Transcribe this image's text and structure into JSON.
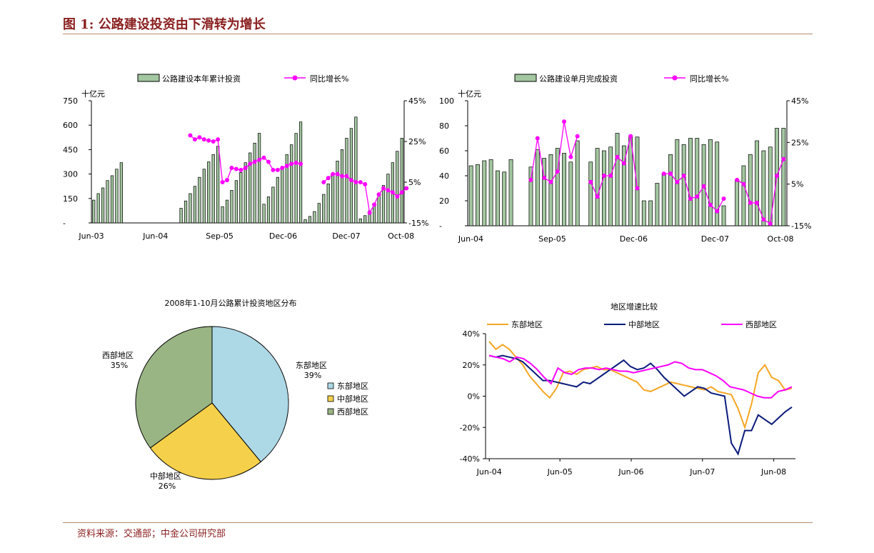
{
  "figure": {
    "title": "图 1:  公路建设投资由下滑转为增长",
    "source": "资料来源：交通部；中金公司研究部"
  },
  "colors": {
    "title": "#8a1f1f",
    "bar": "#a3c7a0",
    "line": "#ff00ff",
    "east": "#f5a623",
    "central": "#0a1a7a",
    "west": "#ff00ff",
    "pie_east": "#add8e6",
    "pie_central": "#f5d04a",
    "pie_west": "#99b584"
  },
  "chart_data": [
    {
      "id": "cumulative",
      "type": "bar",
      "legend": [
        "公路建设本年累计投资",
        "同比增长%"
      ],
      "y_unit": "十亿元",
      "y_ticks": [
        "-",
        "150",
        "300",
        "450",
        "600",
        "750"
      ],
      "y2_ticks": [
        "-15%",
        "5%",
        "25%",
        "45%"
      ],
      "x_ticks": [
        "Jun-03",
        "Jun-04",
        "Sep-05",
        "Dec-06",
        "Dec-07",
        "Oct-08"
      ],
      "ylim": [
        0,
        750
      ],
      "y2lim": [
        -15,
        45
      ],
      "series": [
        {
          "name": "公路建设本年累计投资",
          "kind": "bar",
          "values": [
            140,
            180,
            215,
            260,
            290,
            330,
            370,
            null,
            null,
            null,
            null,
            null,
            null,
            null,
            null,
            null,
            null,
            null,
            null,
            90,
            135,
            180,
            225,
            280,
            330,
            375,
            420,
            470,
            100,
            140,
            200,
            260,
            310,
            370,
            430,
            490,
            550,
            115,
            160,
            220,
            280,
            340,
            420,
            480,
            550,
            620,
            20,
            40,
            70,
            120,
            175,
            240,
            300,
            380,
            450,
            520,
            580,
            650,
            25,
            45,
            75,
            120,
            170,
            230,
            300,
            370,
            440,
            520
          ]
        },
        {
          "name": "同比增长%",
          "kind": "line",
          "values": [
            null,
            null,
            null,
            null,
            null,
            null,
            null,
            null,
            null,
            null,
            null,
            null,
            null,
            null,
            null,
            null,
            null,
            null,
            null,
            null,
            null,
            28,
            26,
            27,
            26,
            25.5,
            25,
            26,
            5,
            6,
            12,
            11.5,
            11,
            12,
            14,
            15,
            16,
            17,
            15,
            11,
            11,
            12,
            13,
            14,
            14.5,
            14,
            null,
            null,
            null,
            null,
            5,
            7,
            9,
            9,
            8,
            8,
            6,
            5,
            5,
            4,
            -10,
            -6,
            -1,
            2,
            1,
            0,
            -2,
            0,
            2
          ]
        }
      ]
    },
    {
      "id": "monthly",
      "type": "bar",
      "legend": [
        "公路建设单月完成投资",
        "同比增长%"
      ],
      "y_unit": "十亿元",
      "y_ticks": [
        "-",
        "20",
        "40",
        "60",
        "80",
        "100"
      ],
      "y2_ticks": [
        "-15%",
        "5%",
        "25%",
        "45%"
      ],
      "x_ticks": [
        "Jun-04",
        "Sep-05",
        "Dec-06",
        "Dec-07",
        "Oct-08"
      ],
      "ylim": [
        0,
        100
      ],
      "y2lim": [
        -15,
        45
      ],
      "series": [
        {
          "name": "公路建设单月完成投资",
          "kind": "bar",
          "values": [
            48,
            49,
            52,
            53,
            44,
            43,
            53,
            null,
            null,
            47,
            61,
            54,
            57,
            62,
            58,
            51,
            68,
            null,
            51,
            62,
            60,
            63,
            74,
            64,
            72,
            71,
            20,
            20,
            34,
            42,
            57,
            69,
            65,
            70,
            70,
            65,
            69,
            67,
            16,
            null,
            37,
            48,
            57,
            68,
            60,
            63,
            78,
            78
          ]
        },
        {
          "name": "同比增长%",
          "kind": "line",
          "values": [
            null,
            null,
            null,
            null,
            null,
            null,
            null,
            null,
            null,
            7,
            27,
            8,
            6,
            11,
            35,
            18,
            28,
            null,
            6,
            -1,
            9,
            9,
            18,
            15,
            28,
            3,
            null,
            null,
            null,
            10,
            10,
            6,
            9,
            -2,
            -1,
            4,
            -5,
            -8,
            -2,
            null,
            7,
            5,
            -4,
            -4,
            -12,
            -14,
            9,
            17
          ]
        }
      ]
    },
    {
      "id": "pie",
      "type": "pie",
      "title": "2008年1-10月公路累计投资地区分布",
      "categories": [
        "东部地区",
        "中部地区",
        "西部地区"
      ],
      "values": [
        39,
        26,
        35
      ],
      "labels": [
        "39%",
        "26%",
        "35%"
      ]
    },
    {
      "id": "regional",
      "type": "line",
      "title": "地区增速比较",
      "y_ticks": [
        "40%",
        "20%",
        "0%",
        "-20%",
        "-40%"
      ],
      "ylim": [
        -40,
        40
      ],
      "x_ticks": [
        "Jun-04",
        "Jun-05",
        "Jun-06",
        "Jun-07",
        "Jun-08"
      ],
      "series": [
        {
          "name": "东部地区",
          "values": [
            35,
            30,
            33,
            30,
            25,
            20,
            13,
            8,
            3,
            -1,
            5,
            15,
            16,
            14,
            17,
            18,
            19,
            17,
            17,
            15,
            13,
            11,
            9,
            4,
            3,
            5,
            7,
            9,
            8,
            7,
            6,
            5,
            4,
            6,
            3,
            2,
            1,
            -8,
            -20,
            -5,
            15,
            20,
            12,
            10,
            4,
            5
          ]
        },
        {
          "name": "中部地区",
          "values": [
            26,
            25,
            26,
            25,
            24,
            22,
            18,
            14,
            10,
            10,
            9,
            8,
            7,
            6,
            9,
            8,
            11,
            14,
            17,
            20,
            23,
            19,
            17,
            18,
            21,
            17,
            12,
            8,
            4,
            0,
            3,
            6,
            5,
            2,
            1,
            0,
            -30,
            -37,
            -22,
            -22,
            -12,
            -15,
            -18,
            -14,
            -10,
            -7
          ]
        },
        {
          "name": "西部地区",
          "values": [
            26,
            25,
            24,
            22,
            25,
            24,
            21,
            17,
            12,
            8,
            18,
            15,
            14,
            17,
            18,
            18,
            17,
            18,
            17,
            16,
            16,
            15,
            16,
            17,
            18,
            19,
            20,
            22,
            21,
            18,
            17,
            17,
            15,
            13,
            10,
            6,
            5,
            4,
            2,
            0,
            -1,
            -1,
            3,
            4,
            6
          ]
        }
      ]
    }
  ]
}
